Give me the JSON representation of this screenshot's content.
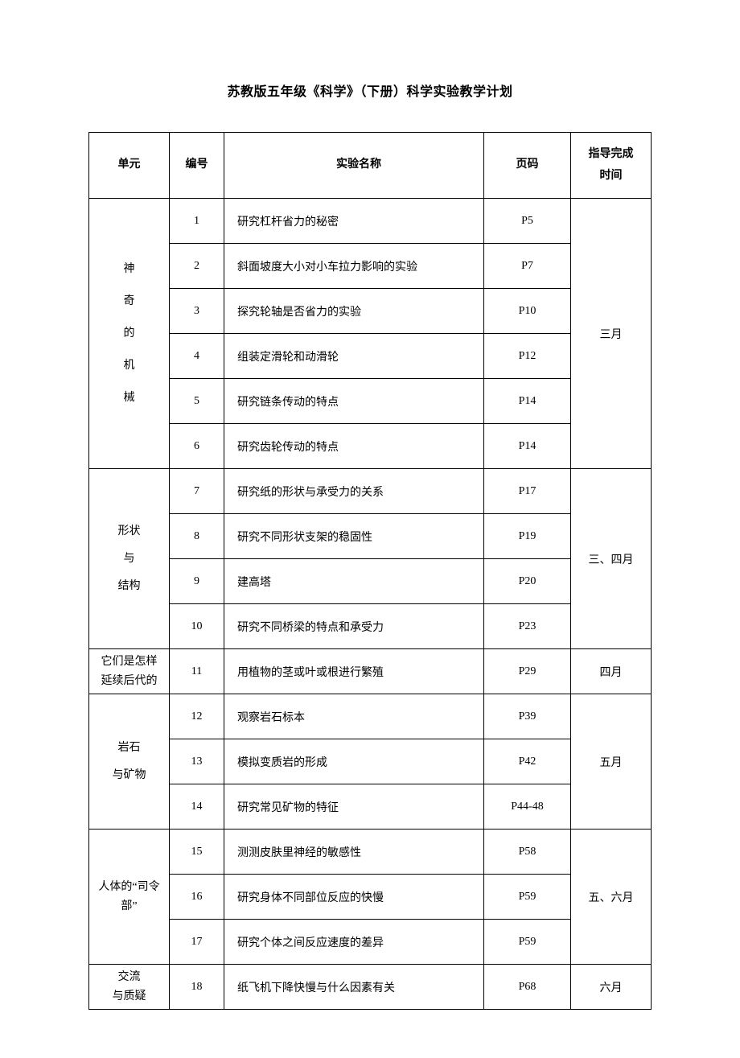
{
  "title": "苏教版五年级《科学》（下册）科学实验教学计划",
  "headers": {
    "unit": "单元",
    "num": "编号",
    "name": "实验名称",
    "page": "页码",
    "time_l1": "指导完成",
    "time_l2": "时间"
  },
  "units": {
    "u1": {
      "chars": [
        "神",
        "奇",
        "的",
        "机",
        "械"
      ]
    },
    "u2": {
      "chars": [
        "形状",
        "与",
        "结构"
      ]
    },
    "u3": {
      "l1": "它们是怎样",
      "l2": "延续后代的"
    },
    "u4": {
      "chars": [
        "岩石",
        "与矿物"
      ]
    },
    "u5": {
      "l1": "人体的“司令",
      "l2": "部”"
    },
    "u6": {
      "l1": "交流",
      "l2": "与质疑"
    }
  },
  "times": {
    "t1": "三月",
    "t2": "三、四月",
    "t3": "四月",
    "t4": "五月",
    "t5": "五、六月",
    "t6": "六月"
  },
  "rows": {
    "r1": {
      "num": "1",
      "name": "研究杠杆省力的秘密",
      "page": "P5"
    },
    "r2": {
      "num": "2",
      "name": "斜面坡度大小对小车拉力影响的实验",
      "page": "P7"
    },
    "r3": {
      "num": "3",
      "name": "探究轮轴是否省力的实验",
      "page": "P10"
    },
    "r4": {
      "num": "4",
      "name": "组装定滑轮和动滑轮",
      "page": "P12"
    },
    "r5": {
      "num": "5",
      "name": "研究链条传动的特点",
      "page": "P14"
    },
    "r6": {
      "num": "6",
      "name": "研究齿轮传动的特点",
      "page": "P14"
    },
    "r7": {
      "num": "7",
      "name": "研究纸的形状与承受力的关系",
      "page": "P17"
    },
    "r8": {
      "num": "8",
      "name": "研究不同形状支架的稳固性",
      "page": "P19"
    },
    "r9": {
      "num": "9",
      "name": "建高塔",
      "page": "P20"
    },
    "r10": {
      "num": "10",
      "name": "研究不同桥梁的特点和承受力",
      "page": "P23"
    },
    "r11": {
      "num": "11",
      "name": "用植物的茎或叶或根进行繁殖",
      "page": "P29"
    },
    "r12": {
      "num": "12",
      "name": "观察岩石标本",
      "page": "P39"
    },
    "r13": {
      "num": "13",
      "name": "模拟变质岩的形成",
      "page": "P42"
    },
    "r14": {
      "num": "14",
      "name": "研究常见矿物的特征",
      "page": "P44-48"
    },
    "r15": {
      "num": "15",
      "name": "测测皮肤里神经的敏感性",
      "page": "P58"
    },
    "r16": {
      "num": "16",
      "name": "研究身体不同部位反应的快慢",
      "page": "P59"
    },
    "r17": {
      "num": "17",
      "name": "研究个体之间反应速度的差异",
      "page": "P59"
    },
    "r18": {
      "num": "18",
      "name": "纸飞机下降快慢与什么因素有关",
      "page": "P68"
    }
  }
}
